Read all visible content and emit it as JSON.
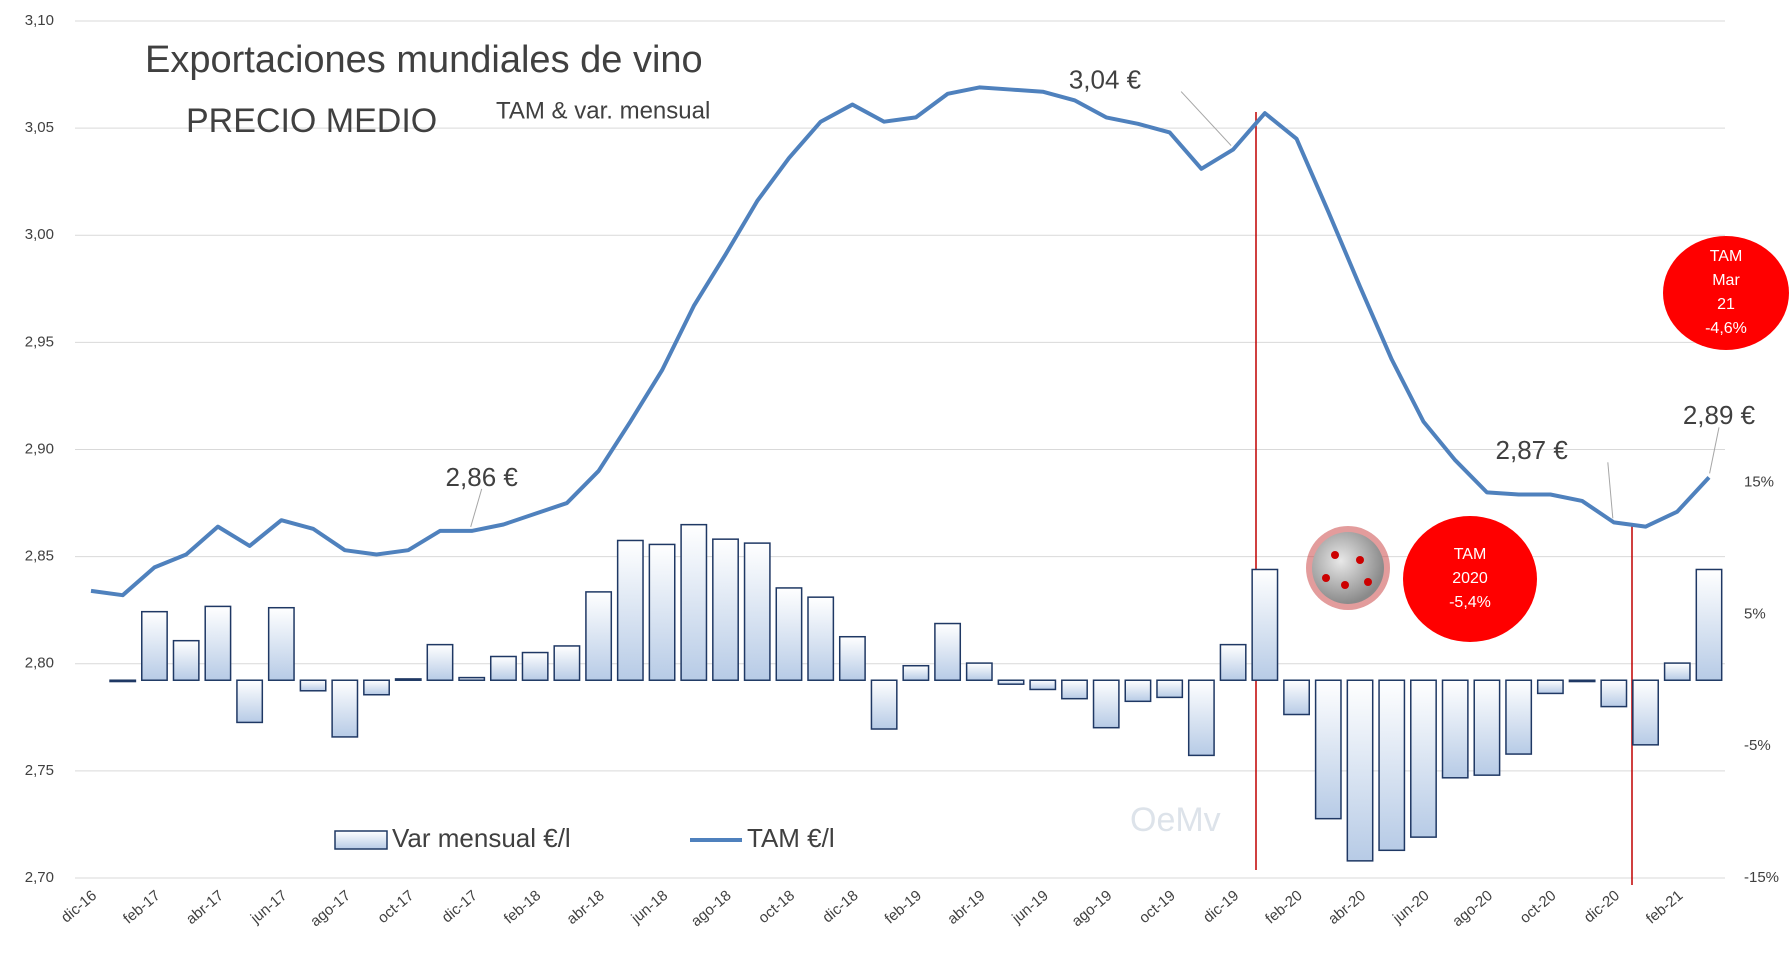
{
  "chart_data": {
    "type": "bar",
    "title": [
      "Exportaciones mundiales de vino",
      "PRECIO MEDIO"
    ],
    "subtitle": "TAM & var. mensual",
    "categories": [
      "dic-16",
      null,
      "feb-17",
      null,
      "abr-17",
      null,
      "jun-17",
      null,
      "ago-17",
      null,
      "oct-17",
      null,
      "dic-17",
      null,
      "feb-18",
      null,
      "abr-18",
      null,
      "jun-18",
      null,
      "ago-18",
      null,
      "oct-18",
      null,
      "dic-18",
      null,
      "feb-19",
      null,
      "abr-19",
      null,
      "jun-19",
      null,
      "ago-19",
      null,
      "oct-19",
      null,
      "dic-19",
      null,
      "feb-20",
      null,
      "abr-20",
      null,
      "jun-20",
      null,
      "ago-20",
      null,
      "oct-20",
      null,
      "dic-20",
      null,
      "feb-21",
      null
    ],
    "series": [
      {
        "name": "Var mensual €/l",
        "type": "bar",
        "axis": "y2",
        "color": "#1f3864",
        "values": [
          null,
          -0.1,
          5.2,
          3.0,
          5.6,
          -3.2,
          5.5,
          -0.8,
          -4.3,
          -1.1,
          0.1,
          2.7,
          0.2,
          1.8,
          2.1,
          2.6,
          6.7,
          10.6,
          10.3,
          11.8,
          10.7,
          10.4,
          7.0,
          6.3,
          3.3,
          -3.7,
          1.1,
          4.3,
          1.3,
          -0.3,
          -0.7,
          -1.4,
          -3.6,
          -1.6,
          -1.3,
          -5.7,
          2.7,
          8.4,
          -2.6,
          -10.5,
          -13.7,
          -12.9,
          -11.9,
          -7.4,
          -7.2,
          -5.6,
          -1.0,
          -0.1,
          -2.0,
          -4.9,
          1.3,
          8.4
        ]
      },
      {
        "name": "TAM €/l",
        "type": "line",
        "axis": "y",
        "color": "#4f81bd",
        "values": [
          2.834,
          2.832,
          2.845,
          2.851,
          2.864,
          2.855,
          2.867,
          2.863,
          2.853,
          2.851,
          2.853,
          2.862,
          2.862,
          2.865,
          2.87,
          2.875,
          2.89,
          2.913,
          2.937,
          2.967,
          2.991,
          3.016,
          3.036,
          3.053,
          3.061,
          3.053,
          3.055,
          3.066,
          3.069,
          3.068,
          3.067,
          3.063,
          3.055,
          3.052,
          3.048,
          3.031,
          3.04,
          3.057,
          3.045,
          3.011,
          2.976,
          2.942,
          2.913,
          2.895,
          2.88,
          2.879,
          2.879,
          2.876,
          2.866,
          2.864,
          2.871,
          2.887
        ],
        "value_labels": [
          null,
          null,
          null,
          null,
          null,
          null,
          null,
          null,
          null,
          null,
          null,
          null,
          "2,86 €",
          null,
          null,
          null,
          null,
          null,
          null,
          null,
          null,
          null,
          null,
          null,
          null,
          null,
          null,
          null,
          null,
          null,
          null,
          null,
          null,
          null,
          null,
          null,
          "3,04 €",
          null,
          null,
          null,
          null,
          null,
          null,
          null,
          null,
          null,
          null,
          null,
          "2,87 €",
          null,
          null,
          "2,89 €"
        ]
      }
    ],
    "ylim": [
      2.7,
      3.1
    ],
    "yticks": [
      {
        "value": 2.7,
        "label": "2,70"
      },
      {
        "value": 2.75,
        "label": "2,75"
      },
      {
        "value": 2.8,
        "label": "2,80"
      },
      {
        "value": 2.85,
        "label": "2,85"
      },
      {
        "value": 2.9,
        "label": "2,90"
      },
      {
        "value": 2.95,
        "label": "2,95"
      },
      {
        "value": 3.0,
        "label": "3,00"
      },
      {
        "value": 3.05,
        "label": "3,05"
      },
      {
        "value": 3.1,
        "label": "3,10"
      }
    ],
    "y2lim": [
      -15,
      50
    ],
    "y2ticks": [
      {
        "value": 15,
        "label": "15%"
      },
      {
        "value": 5,
        "label": "5%"
      },
      {
        "value": -5,
        "label": "-5%"
      },
      {
        "value": -15,
        "label": "-15%"
      }
    ],
    "grid": true,
    "legend": "bottom-left",
    "annotations": [
      [
        "TAM",
        "2020",
        "-5,4%"
      ],
      [
        "TAM",
        "Mar",
        "21",
        "-4,6%"
      ]
    ],
    "watermark": "OeMv"
  }
}
